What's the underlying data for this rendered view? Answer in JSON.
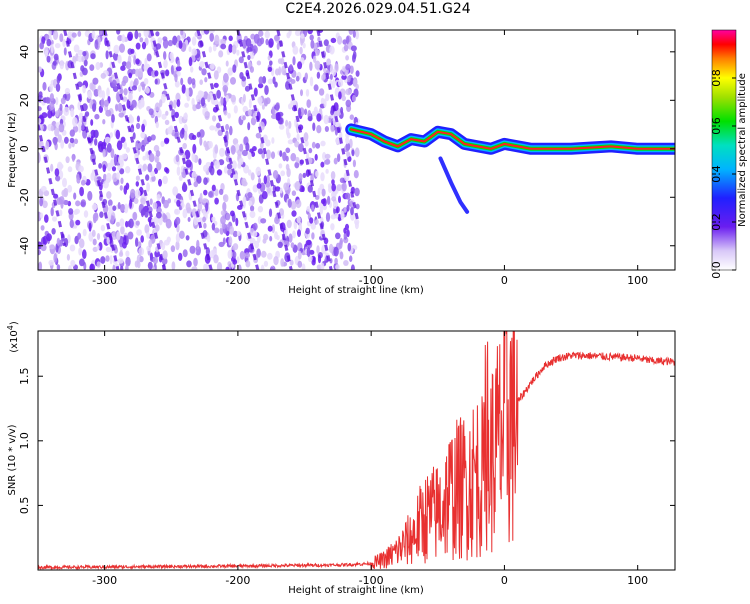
{
  "title": "C2E4.2026.029.04.51.G24",
  "colors": {
    "spectrogram_noise": "#8a5cf0",
    "spectrogram_stripe": "#5a10e0",
    "snr_line": "#e83030"
  },
  "chart_data": [
    {
      "type": "heatmap",
      "name": "spectrogram",
      "xlabel": "Height of straight line (km)",
      "ylabel": "Frequency (Hz)",
      "xlim": [
        -350,
        128
      ],
      "ylim": [
        -50,
        49
      ],
      "xticks": [
        -300,
        -200,
        -100,
        0,
        100
      ],
      "yticks": [
        -40,
        -20,
        0,
        20,
        40
      ],
      "noise_region_x": [
        -350,
        -110
      ],
      "signal_trace": {
        "x": [
          -115,
          -100,
          -90,
          -80,
          -70,
          -60,
          -50,
          -40,
          -30,
          -20,
          -10,
          0,
          20,
          50,
          80,
          100,
          128
        ],
        "y": [
          8,
          6,
          3,
          1,
          4,
          3,
          7,
          6,
          2,
          1,
          0,
          2,
          0,
          0,
          1,
          0,
          0
        ]
      },
      "colorbar": {
        "label": "Normalized spectral amplitude",
        "ticks": [
          0.0,
          0.2,
          0.4,
          0.6,
          0.8
        ],
        "tick_labels": [
          "0.0",
          "0.2",
          "0.4",
          "0.6",
          "0.8"
        ],
        "range": [
          0,
          1
        ]
      }
    },
    {
      "type": "line",
      "name": "snr",
      "xlabel": "Height of straight line (km)",
      "ylabel": "SNR (10 * v/v)",
      "y_multiplier_label": "(x10",
      "y_multiplier_exp": "4",
      "xlim": [
        -350,
        128
      ],
      "ylim": [
        0,
        1.85
      ],
      "xticks": [
        -300,
        -200,
        -100,
        0,
        100
      ],
      "yticks": [
        0.5,
        1.0,
        1.5
      ],
      "ytick_labels": [
        "0.5",
        "1.0",
        "1.5"
      ],
      "series": [
        {
          "name": "SNR",
          "x": [
            -350,
            -200,
            -120,
            -100,
            -90,
            -80,
            -70,
            -60,
            -50,
            -40,
            -30,
            -20,
            -15,
            -10,
            0,
            10,
            20,
            30,
            40,
            50,
            60,
            80,
            100,
            110,
            128
          ],
          "y": [
            0.02,
            0.03,
            0.04,
            0.05,
            0.08,
            0.15,
            0.25,
            0.4,
            0.45,
            0.6,
            0.65,
            0.75,
            0.7,
            0.85,
            1.1,
            1.3,
            1.45,
            1.58,
            1.64,
            1.66,
            1.66,
            1.65,
            1.64,
            1.62,
            1.61
          ]
        }
      ]
    }
  ]
}
